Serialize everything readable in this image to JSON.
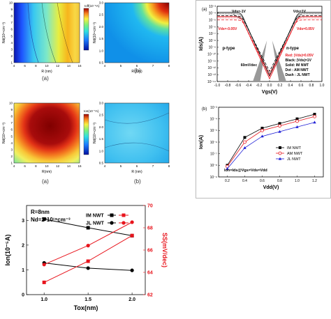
{
  "contours": {
    "tl": {
      "ylabel": "Nd(10¹⁹cm⁻³)",
      "xlabel": "R (nm)",
      "sublabel": "(a)",
      "x_ticks": [
        "4",
        "6",
        "8",
        "10",
        "12",
        "14",
        "16"
      ],
      "y_ticks": [
        "1",
        "2",
        "3",
        "4",
        "5",
        "6",
        "7",
        "8",
        "9",
        "10"
      ],
      "colorbar_title": "Ioff(10⁻⁸A)"
    },
    "tr": {
      "ylabel": "Nd(10¹⁹cm⁻³)",
      "xlabel": "R (nm)",
      "sublabel": "(b)",
      "x_ticks": [
        "4",
        "5",
        "6",
        "7",
        "8"
      ],
      "y_ticks": [
        "0.5",
        "1.0",
        "1.5",
        "2.0",
        "2.5",
        "3.0"
      ],
      "colorbar_title": ""
    },
    "ml": {
      "ylabel": "Nd(10¹⁹cm⁻³)",
      "xlabel": "R(nm)",
      "sublabel": "(a)",
      "x_ticks": [
        "4",
        "6",
        "8",
        "10",
        "12",
        "14",
        "16"
      ],
      "y_ticks": [
        "1",
        "2",
        "3",
        "4",
        "5",
        "6",
        "7",
        "8",
        "9",
        "10"
      ],
      "colorbar_title": "Ion(10⁻⁵A)"
    },
    "mr": {
      "ylabel": "Nd(10¹⁹cm⁻³)",
      "xlabel": "R (nm)",
      "sublabel": "(b)",
      "x_ticks": [
        "4",
        "5",
        "6",
        "7",
        "8"
      ],
      "y_ticks": [
        "0.5",
        "1.0",
        "1.5",
        "2.0",
        "2.5",
        "3.0"
      ],
      "colorbar_title": ""
    }
  },
  "chart_data": [
    {
      "type": "line",
      "panel_label": "(a)",
      "xlabel": "Vgs(V)",
      "ylabel": "Ids(A)",
      "x_ticks": [
        "-1.0",
        "-0.8",
        "-0.6",
        "-0.4",
        "-0.2",
        "0.0",
        "0.2",
        "0.4",
        "0.6",
        "0.8",
        "1.0"
      ],
      "y_ticks": [
        "10⁻³",
        "10⁻⁴",
        "10⁻⁵",
        "10⁻⁶",
        "10⁻⁷",
        "10⁻⁸",
        "10⁻⁹",
        "10⁻¹⁰",
        "10⁻¹¹",
        "10⁻¹²",
        "10⁻¹³",
        "10⁻¹⁴"
      ],
      "xlim": [
        -1.0,
        1.0
      ],
      "log_y": true,
      "annotations": [
        "Vds=-1V",
        "Vds=1V",
        "Vds=-0.05V",
        "Vds=0.05V",
        "p-type",
        "n-type",
        "60mV/dec",
        "Red: |Vds|=0.05V",
        "Black: |Vds|=1V",
        "Solid: IM NWT",
        "Dot : AM NWT",
        "Dash : JL NWT"
      ]
    },
    {
      "type": "line",
      "panel_label": "(b)",
      "xlabel": "Vdd(V)",
      "ylabel": "Ion(A)",
      "x": [
        0.2,
        0.4,
        0.6,
        0.8,
        1.0,
        1.2
      ],
      "xlim": [
        0.1,
        1.3
      ],
      "x_ticks": [
        "0.2",
        "0.4",
        "0.6",
        "0.8",
        "1.0",
        "1.2"
      ],
      "y_ticks": [
        "10⁻³",
        "10⁻⁴",
        "10⁻⁵",
        "10⁻⁶",
        "10⁻⁷",
        "10⁻⁸",
        "10⁻⁹"
      ],
      "log_y": true,
      "annotation": "Ion=Ids@Vgs=Vds=Vdd",
      "series": [
        {
          "name": "IM NWT",
          "log10_values": [
            -8.0,
            -5.6,
            -4.8,
            -4.4,
            -4.0,
            -3.6
          ],
          "color": "#000000",
          "marker": "square"
        },
        {
          "name": "AM NWT",
          "log10_values": [
            -8.1,
            -6.0,
            -5.0,
            -4.6,
            -4.2,
            -3.8
          ],
          "color": "#e8141c",
          "marker": "circle"
        },
        {
          "name": "JL NWT",
          "log10_values": [
            -8.3,
            -6.5,
            -5.5,
            -5.1,
            -4.7,
            -4.3
          ],
          "color": "#1f1fd6",
          "marker": "triangle"
        }
      ]
    },
    {
      "type": "line",
      "xlabel": "Tox(nm)",
      "ylabel": "Ion(10⁻⁵A)",
      "ylabel2": "SS(mV/dec)",
      "x": [
        1.0,
        1.5,
        2.0
      ],
      "xlim": [
        0.8,
        2.15
      ],
      "x_ticks": [
        "1.0",
        "1.5",
        "2.0"
      ],
      "ylim": [
        0.0,
        3.6
      ],
      "y_ticks": [
        "0",
        "1",
        "2",
        "3"
      ],
      "ylim2": [
        62,
        70
      ],
      "y2_ticks": [
        "62",
        "64",
        "66",
        "68",
        "70"
      ],
      "text_r": "R=8nm",
      "text_nd": "Nd=2*10¹⁹cm⁻³",
      "legend_rows": [
        "IM NWT",
        "JL NWT"
      ],
      "series": [
        {
          "name": "IM NWT",
          "axis": "left",
          "values": [
            3.05,
            2.7,
            2.38
          ],
          "color": "#000000",
          "marker": "square"
        },
        {
          "name": "JL NWT",
          "axis": "left",
          "values": [
            1.28,
            1.07,
            0.98
          ],
          "color": "#000000",
          "marker": "circle"
        },
        {
          "name": "IM NWT",
          "axis": "right",
          "values": [
            63.1,
            65.0,
            67.3
          ],
          "color": "#e8141c",
          "marker": "square"
        },
        {
          "name": "JL NWT",
          "axis": "right",
          "values": [
            64.7,
            66.4,
            68.5
          ],
          "color": "#e8141c",
          "marker": "circle"
        }
      ]
    }
  ]
}
